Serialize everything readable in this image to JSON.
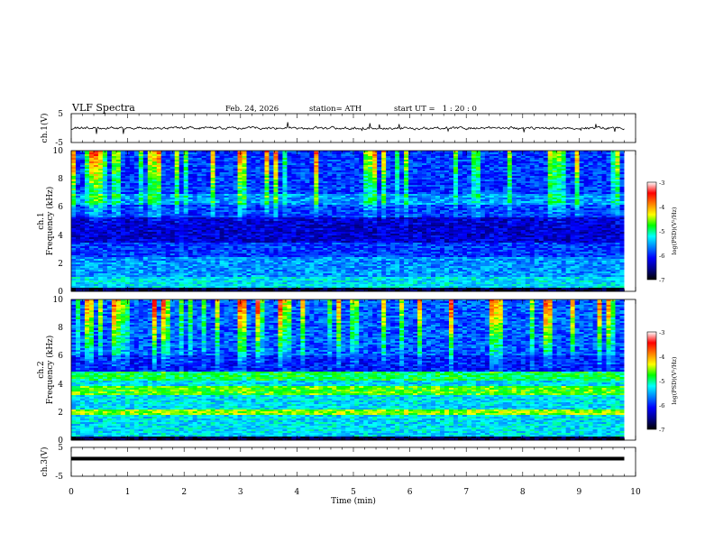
{
  "header": {
    "title": "VLF Spectra",
    "date": "Feb. 24, 2026",
    "station": "station= ATH",
    "start_ut": "start UT =   1 : 20 : 0"
  },
  "x_axis": {
    "label": "Time (min)",
    "ticks": [
      "0",
      "1",
      "2",
      "3",
      "4",
      "5",
      "6",
      "7",
      "8",
      "9",
      "10"
    ],
    "range": [
      0,
      10
    ]
  },
  "ch1_wave": {
    "label": "ch.1(V)",
    "ticks": [
      "5",
      "-5"
    ],
    "range": [
      -5,
      5
    ]
  },
  "ch1_spec": {
    "label_line1": "ch.1",
    "label_line2": "Frequency (kHz)",
    "ticks": [
      "10",
      "8",
      "6",
      "4",
      "2",
      "0"
    ],
    "range": [
      0,
      10
    ]
  },
  "ch2_spec": {
    "label_line1": "ch.2",
    "label_line2": "Frequency (kHz)",
    "ticks": [
      "10",
      "8",
      "6",
      "4",
      "2",
      "0"
    ],
    "range": [
      0,
      10
    ]
  },
  "ch3_wave": {
    "label": "ch.3(V)",
    "ticks": [
      "5",
      "-5"
    ],
    "range": [
      -5,
      5
    ]
  },
  "colorbar": {
    "label": "log(PSD)(V²/Hz)",
    "ticks": [
      "-3",
      "-4",
      "-5",
      "-6",
      "-7"
    ],
    "range": [
      -7,
      -3
    ],
    "colors": [
      "#000000",
      "#00008b",
      "#0000ff",
      "#0080ff",
      "#00ffff",
      "#00ff00",
      "#ffff00",
      "#ff8000",
      "#ff0000",
      "#ffffff"
    ]
  },
  "chart_data": [
    {
      "type": "line",
      "title": "VLF Spectra",
      "ylabel": "ch.1(V)",
      "xlabel": "Time (min)",
      "xlim": [
        0,
        9.8
      ],
      "ylim": [
        -5,
        5
      ],
      "series": [
        {
          "values_summary": "noisy trace near 0 V, mostly between -1.5 and 1.5 V"
        }
      ]
    },
    {
      "type": "heatmap",
      "ylabel": "ch.1 Frequency (kHz)",
      "xlabel": "Time (min)",
      "xlim": [
        0,
        9.8
      ],
      "ylim": [
        0,
        10
      ],
      "zlabel": "log(PSD)(V²/Hz)",
      "zlim": [
        -7,
        -3
      ]
    },
    {
      "type": "heatmap",
      "ylabel": "ch.2 Frequency (kHz)",
      "xlabel": "Time (min)",
      "xlim": [
        0,
        9.8
      ],
      "ylim": [
        0,
        10
      ],
      "zlabel": "log(PSD)(V²/Hz)",
      "zlim": [
        -7,
        -3
      ]
    },
    {
      "type": "line",
      "ylabel": "ch.3(V)",
      "xlabel": "Time (min)",
      "xlim": [
        0,
        9.8
      ],
      "ylim": [
        -5,
        5
      ],
      "series": [
        {
          "values": [
            1.1,
            1.1
          ],
          "x": [
            0,
            9.8
          ]
        }
      ]
    }
  ]
}
